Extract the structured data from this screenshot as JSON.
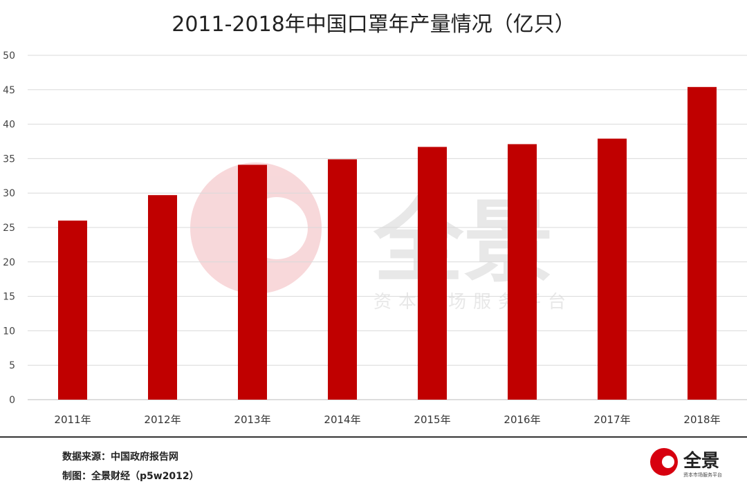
{
  "chart_data": {
    "type": "bar",
    "title": "2011-2018年中国口罩年产量情况（亿只）",
    "categories": [
      "2011年",
      "2012年",
      "2013年",
      "2014年",
      "2015年",
      "2016年",
      "2017年",
      "2018年"
    ],
    "values": [
      26.0,
      29.7,
      34.1,
      34.9,
      36.7,
      37.1,
      37.9,
      45.4
    ],
    "ylim": [
      0,
      50
    ],
    "yticks": [
      0,
      5,
      10,
      15,
      20,
      25,
      30,
      35,
      40,
      45,
      50
    ],
    "grid": true,
    "bar_color": "#c00000",
    "xlabel": "",
    "ylabel": ""
  },
  "footer": {
    "source": "数据来源：中国政府报告网",
    "credit": "制图：全景财经（p5w2012）"
  },
  "watermark": {
    "brand": "全景",
    "slogan": "资本市场服务平台"
  },
  "logo": {
    "brand": "全景",
    "slogan": "资本市场服务平台",
    "color": "#d7000f"
  }
}
